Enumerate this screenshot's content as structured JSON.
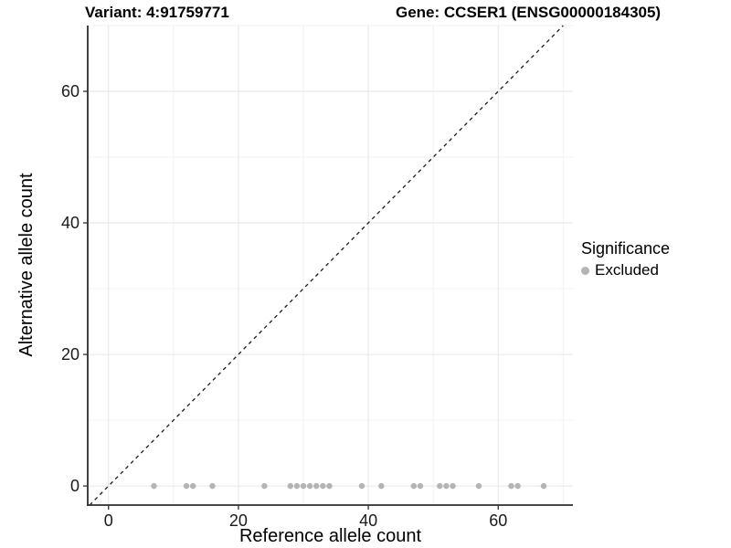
{
  "chart_data": {
    "type": "scatter",
    "title_left": "Variant: 4:91759771",
    "title_right": "Gene: CCSER1 (ENSG00000184305)",
    "xlabel": "Reference allele count",
    "ylabel": "Alternative allele count",
    "xlim": [
      -3.2,
      71.5
    ],
    "ylim": [
      -2.9,
      70
    ],
    "x_ticks": [
      0,
      20,
      40,
      60
    ],
    "y_ticks": [
      0,
      20,
      40,
      60
    ],
    "x_minor_ticks": [
      10,
      30,
      50,
      70
    ],
    "y_minor_ticks": [
      10,
      30,
      50,
      70
    ],
    "grid": "on",
    "legend_position": "right",
    "identity_line": {
      "slope": 1,
      "intercept": 0,
      "style": "dashed",
      "color": "#1a1a1a"
    },
    "series": [
      {
        "name": "Excluded",
        "color": "#b4b4b4",
        "x": [
          7,
          12,
          13,
          16,
          24,
          28,
          29,
          30,
          31,
          32,
          33,
          34,
          39,
          42,
          47,
          48,
          51,
          52,
          53,
          57,
          62,
          63,
          67
        ],
        "y": [
          0,
          0,
          0,
          0,
          0,
          0,
          0,
          0,
          0,
          0,
          0,
          0,
          0,
          0,
          0,
          0,
          0,
          0,
          0,
          0,
          0,
          0,
          0
        ]
      }
    ],
    "legend": {
      "title": "Significance",
      "items": [
        {
          "label": "Excluded",
          "color": "#b4b4b4"
        }
      ]
    },
    "colors": {
      "grid_major": "#e6e6e6",
      "grid_minor": "#f2f2f2",
      "axis_line": "#2e2e2e",
      "tick_text": "#1a1a1a",
      "panel_background": "#ffffff"
    }
  }
}
